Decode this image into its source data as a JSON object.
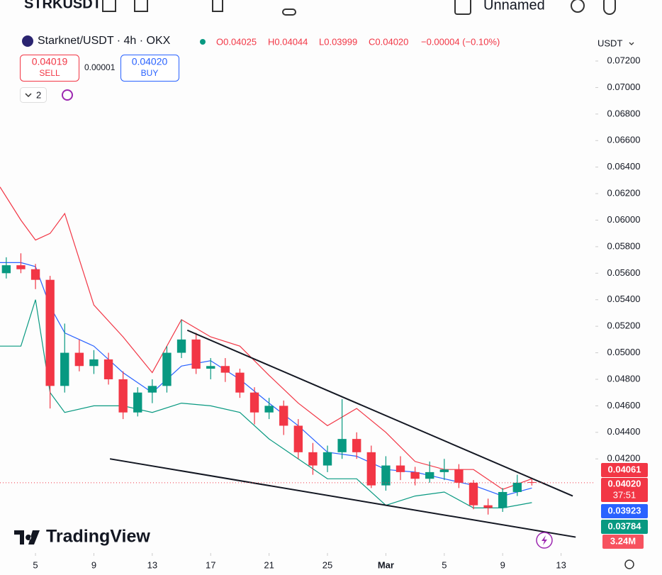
{
  "toolbar": {
    "symbol": "STRKUSDT",
    "layout": "Unnamed"
  },
  "header": {
    "title": "Starknet/USDT · 4h · OKX",
    "open": "O0.04025",
    "high": "H0.04044",
    "low": "L0.03999",
    "close": "C0.04020",
    "change": "−0.00004 (−0.10%)"
  },
  "trade": {
    "sell_price": "0.04019",
    "sell_label": "SELL",
    "spread": "0.00001",
    "buy_price": "0.04020",
    "buy_label": "BUY"
  },
  "indicators_count": "2",
  "currency": "USDT",
  "price_tags": [
    "0.04061",
    "0.04020",
    "37:51",
    "0.03923",
    "0.03784",
    "3.24M"
  ],
  "logo": "TradingView",
  "chart_data": {
    "type": "candlestick",
    "up_color": "#089981",
    "down_color": "#f23645",
    "x": [
      -2,
      -1,
      0,
      1,
      2,
      3,
      4,
      5,
      6,
      7,
      8,
      9,
      10,
      11,
      12,
      13,
      14,
      15,
      16,
      17,
      18,
      19,
      20,
      21,
      22,
      23,
      24,
      25,
      26,
      27,
      28,
      29,
      30,
      31,
      32,
      33,
      34
    ],
    "open": [
      0.056,
      0.0566,
      0.0563,
      0.0555,
      0.0475,
      0.05,
      0.049,
      0.0495,
      0.048,
      0.0455,
      0.047,
      0.0475,
      0.05,
      0.051,
      0.0488,
      0.049,
      0.0485,
      0.047,
      0.0455,
      0.046,
      0.0445,
      0.0425,
      0.0415,
      0.0425,
      0.0435,
      0.0425,
      0.04,
      0.0415,
      0.041,
      0.0405,
      0.041,
      0.0412,
      0.0402,
      0.0385,
      0.0383,
      0.0395,
      0.04025
    ],
    "high": [
      0.0572,
      0.0575,
      0.0567,
      0.0558,
      0.0522,
      0.051,
      0.0502,
      0.05,
      0.0486,
      0.0474,
      0.048,
      0.0505,
      0.0525,
      0.0515,
      0.0496,
      0.0496,
      0.0488,
      0.0474,
      0.0466,
      0.0464,
      0.045,
      0.0432,
      0.043,
      0.0465,
      0.044,
      0.043,
      0.0422,
      0.0422,
      0.0414,
      0.0418,
      0.042,
      0.0416,
      0.0404,
      0.039,
      0.0398,
      0.0408,
      0.04044
    ],
    "low": [
      0.0556,
      0.056,
      0.0548,
      0.0458,
      0.047,
      0.0486,
      0.0484,
      0.0476,
      0.045,
      0.0452,
      0.0462,
      0.047,
      0.0496,
      0.0484,
      0.048,
      0.0478,
      0.0466,
      0.0446,
      0.045,
      0.0438,
      0.042,
      0.0408,
      0.041,
      0.042,
      0.042,
      0.0398,
      0.0396,
      0.0404,
      0.04,
      0.0402,
      0.0404,
      0.0398,
      0.0382,
      0.0378,
      0.038,
      0.0392,
      0.03999
    ],
    "close": [
      0.0566,
      0.0563,
      0.0555,
      0.0475,
      0.05,
      0.049,
      0.0495,
      0.048,
      0.0455,
      0.047,
      0.0475,
      0.05,
      0.051,
      0.0488,
      0.049,
      0.0485,
      0.047,
      0.0455,
      0.046,
      0.0445,
      0.0425,
      0.0415,
      0.0425,
      0.0435,
      0.0425,
      0.04,
      0.0415,
      0.041,
      0.0405,
      0.041,
      0.0412,
      0.0402,
      0.0385,
      0.0383,
      0.0395,
      0.0402,
      0.0402
    ],
    "band_x": [
      -2.43,
      -1,
      0,
      1,
      2,
      4,
      6,
      8,
      10,
      12,
      14,
      16,
      18,
      20,
      22,
      24,
      26,
      28,
      30,
      32,
      34
    ],
    "bands": [
      {
        "color": "#f23645",
        "values": [
          0.0625,
          0.06,
          0.0585,
          0.059,
          0.0605,
          0.0536,
          0.0512,
          0.0485,
          0.0525,
          0.0512,
          0.0505,
          0.0483,
          0.0462,
          0.0445,
          0.0458,
          0.044,
          0.0418,
          0.0412,
          0.0412,
          0.0397,
          0.0405
        ]
      },
      {
        "color": "#2962ff",
        "values": [
          0.0568,
          0.0568,
          0.0565,
          0.0535,
          0.0515,
          0.0505,
          0.0485,
          0.047,
          0.049,
          0.0494,
          0.048,
          0.0462,
          0.0445,
          0.0425,
          0.0422,
          0.0412,
          0.041,
          0.0405,
          0.04,
          0.0392,
          0.0398
        ]
      },
      {
        "color": "#089981",
        "values": [
          0.0505,
          0.0505,
          0.054,
          0.047,
          0.0455,
          0.046,
          0.046,
          0.0455,
          0.0462,
          0.046,
          0.0455,
          0.0435,
          0.042,
          0.0405,
          0.0405,
          0.0385,
          0.0392,
          0.0395,
          0.0383,
          0.0383,
          0.0387
        ]
      }
    ],
    "trendlines": [
      {
        "x": [
          10.4,
          36.8
        ],
        "y": [
          0.0517,
          0.0392
        ]
      },
      {
        "x": [
          5.1,
          37
        ],
        "y": [
          0.042,
          0.0361
        ]
      }
    ],
    "xlim": [
      -2.43,
      38.35
    ],
    "ylim": [
      0.0349,
      0.0766
    ],
    "xticks": [
      {
        "value": 0,
        "label": "5"
      },
      {
        "value": 4,
        "label": "9"
      },
      {
        "value": 8,
        "label": "13"
      },
      {
        "value": 12,
        "label": "17"
      },
      {
        "value": 16,
        "label": "21"
      },
      {
        "value": 20,
        "label": "25"
      },
      {
        "value": 24,
        "label": "Mar"
      },
      {
        "value": 28,
        "label": "5"
      },
      {
        "value": 32,
        "label": "9"
      },
      {
        "value": 36,
        "label": "13"
      }
    ],
    "yticks": [
      {
        "value": 0.072,
        "label": "0.07200"
      },
      {
        "value": 0.07,
        "label": "0.07000"
      },
      {
        "value": 0.068,
        "label": "0.06800"
      },
      {
        "value": 0.066,
        "label": "0.06600"
      },
      {
        "value": 0.064,
        "label": "0.06400"
      },
      {
        "value": 0.062,
        "label": "0.06200"
      },
      {
        "value": 0.06,
        "label": "0.06000"
      },
      {
        "value": 0.058,
        "label": "0.05800"
      },
      {
        "value": 0.056,
        "label": "0.05600"
      },
      {
        "value": 0.054,
        "label": "0.05400"
      },
      {
        "value": 0.052,
        "label": "0.05200"
      },
      {
        "value": 0.05,
        "label": "0.05000"
      },
      {
        "value": 0.048,
        "label": "0.04800"
      },
      {
        "value": 0.046,
        "label": "0.04600"
      },
      {
        "value": 0.044,
        "label": "0.04400"
      },
      {
        "value": 0.042,
        "label": "0.04200"
      }
    ]
  }
}
